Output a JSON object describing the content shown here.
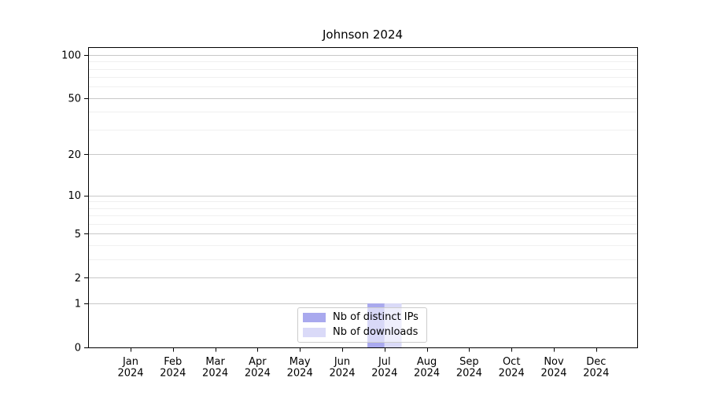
{
  "chart_data": {
    "type": "bar",
    "title": "Johnson 2024",
    "categories": [
      "Jan 2024",
      "Feb 2024",
      "Mar 2024",
      "Apr 2024",
      "May 2024",
      "Jun 2024",
      "Jul 2024",
      "Aug 2024",
      "Sep 2024",
      "Oct 2024",
      "Nov 2024",
      "Dec 2024"
    ],
    "x_tick_line1": [
      "Jan",
      "Feb",
      "Mar",
      "Apr",
      "May",
      "Jun",
      "Jul",
      "Aug",
      "Sep",
      "Oct",
      "Nov",
      "Dec"
    ],
    "x_tick_line2": [
      "2024",
      "2024",
      "2024",
      "2024",
      "2024",
      "2024",
      "2024",
      "2024",
      "2024",
      "2024",
      "2024",
      "2024"
    ],
    "series": [
      {
        "name": "Nb of distinct IPs",
        "color": "#a9a9ee",
        "values": [
          0,
          0,
          0,
          0,
          0,
          0,
          1,
          0,
          0,
          0,
          0,
          0
        ]
      },
      {
        "name": "Nb of downloads",
        "color": "#dadaf8",
        "values": [
          0,
          0,
          0,
          0,
          0,
          0,
          1,
          0,
          0,
          0,
          0,
          0
        ]
      }
    ],
    "xlabel": "",
    "ylabel": "",
    "yscale": "log1p",
    "ylim": [
      0,
      113
    ],
    "y_major_ticks": [
      100,
      50,
      20,
      10,
      5,
      2,
      1,
      0
    ],
    "y_minor_ticks": [
      3,
      4,
      6,
      7,
      8,
      9,
      30,
      40,
      60,
      70,
      80,
      90
    ],
    "grid": true,
    "legend_position": "lower center",
    "colors": {
      "spine": "#000000",
      "major_grid": "#c8c8c8",
      "minor_grid": "#f0f0f0",
      "tick_label": "#000000"
    }
  }
}
